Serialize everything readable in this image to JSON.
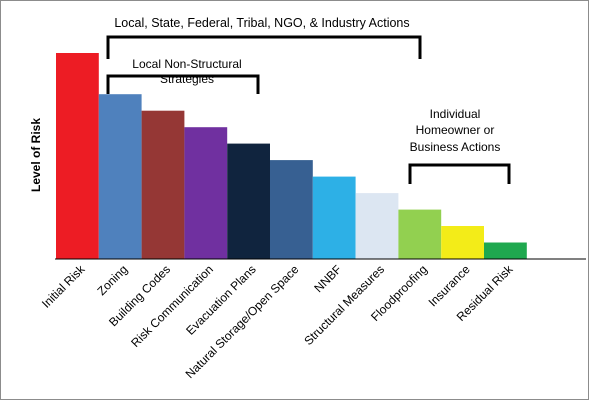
{
  "chart_data": {
    "type": "bar",
    "ylabel": "Level of Risk",
    "ylim": [
      0,
      100
    ],
    "grid": false,
    "legend": "none",
    "categories": [
      "Initial Risk",
      "Zoning",
      "Building Codes",
      "Risk Communication",
      "Evacuation Plans",
      "Natural Storage/Open Space",
      "NNBF",
      "Structural Measures",
      "Floodproofing",
      "Insurance",
      "Residual Risk"
    ],
    "values": [
      100,
      80,
      72,
      64,
      56,
      48,
      40,
      32,
      24,
      16,
      8
    ],
    "colors": [
      "#ed1c24",
      "#4f81bd",
      "#953735",
      "#7030a0",
      "#10243e",
      "#376092",
      "#2db0e6",
      "#dce6f2",
      "#92d050",
      "#f3ec18",
      "#1fa84f"
    ],
    "annotations": [
      {
        "label": "Local, State, Federal, Tribal, NGO, & Industry Actions",
        "from": "Zoning",
        "to": "Floodproofing"
      },
      {
        "label": "Local Non-Structural Strategies",
        "from": "Zoning",
        "to": "Evacuation Plans"
      },
      {
        "label": "Individual Homeowner or Business Actions",
        "from": "Floodproofing",
        "to": "Residual Risk"
      }
    ]
  }
}
